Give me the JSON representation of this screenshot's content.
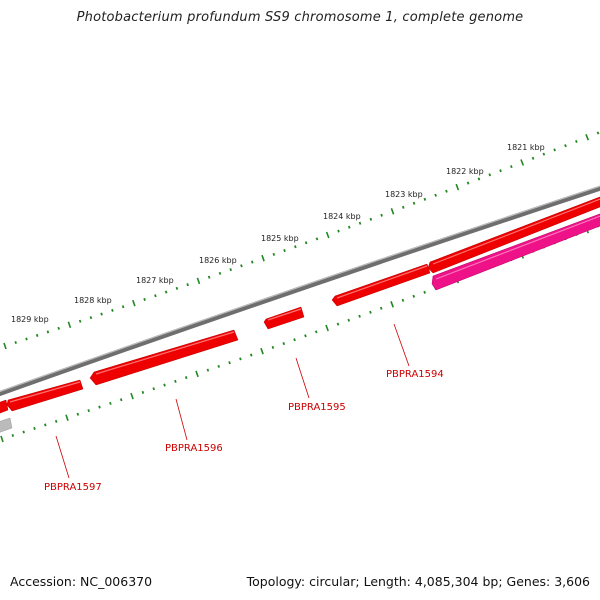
{
  "title": "Photobacterium profundum SS9 chromosome 1, complete genome",
  "footer": {
    "accession": "Accession: NC_006370",
    "summary": "Topology: circular; Length: 4,085,304 bp; Genes: 3,606"
  },
  "scale": {
    "unit_suffix": " kbp",
    "labels": [
      "1821 kbp",
      "1822 kbp",
      "1823 kbp",
      "1824 kbp",
      "1825 kbp",
      "1826 kbp",
      "1827 kbp",
      "1828 kbp",
      "1829 kbp"
    ]
  },
  "genes": [
    {
      "id": "PBPRA1594",
      "label": "PBPRA1594"
    },
    {
      "id": "PBPRA1595",
      "label": "PBPRA1595"
    },
    {
      "id": "PBPRA1596",
      "label": "PBPRA1596"
    },
    {
      "id": "PBPRA1597",
      "label": "PBPRA1597"
    }
  ],
  "colors": {
    "backbone": "#7a7a7a",
    "cds": "#ee0000",
    "cds_highlight": "#ee1188",
    "cds_gray": "#bbbbbb",
    "tick": "#228822",
    "gene_label": "#cc0000"
  }
}
